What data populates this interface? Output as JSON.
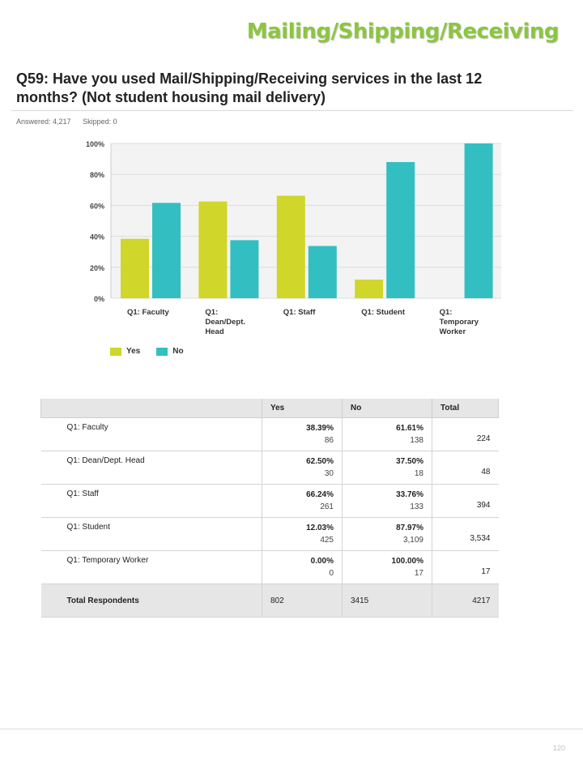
{
  "header": {
    "section_title": "Mailing/Shipping/Receiving",
    "question": "Q59: Have you used Mail/Shipping/Receiving services in the last 12 months? (Not student housing mail delivery)",
    "answered": "Answered: 4,217",
    "skipped": "Skipped: 0"
  },
  "chart_data": {
    "type": "bar",
    "categories": [
      [
        "Q1: Faculty"
      ],
      [
        "Q1:",
        "Dean/Dept.",
        "Head"
      ],
      [
        "Q1: Staff"
      ],
      [
        "Q1: Student"
      ],
      [
        "Q1:",
        "Temporary",
        "Worker"
      ]
    ],
    "series": [
      {
        "name": "Yes",
        "color": "#d0d62a",
        "values": [
          38.39,
          62.5,
          66.24,
          12.03,
          0.0
        ]
      },
      {
        "name": "No",
        "color": "#33bfc1",
        "values": [
          61.61,
          37.5,
          33.76,
          87.97,
          100.0
        ]
      }
    ],
    "ylim": [
      0,
      100
    ],
    "yticks": [
      "0%",
      "20%",
      "40%",
      "60%",
      "80%",
      "100%"
    ],
    "grid": true,
    "legend": "bottom-left"
  },
  "table": {
    "headers": [
      "",
      "Yes",
      "No",
      "Total"
    ],
    "rows": [
      {
        "label": "Q1: Faculty",
        "yes_pct": "38.39%",
        "yes_n": "86",
        "no_pct": "61.61%",
        "no_n": "138",
        "total": "224"
      },
      {
        "label": "Q1: Dean/Dept. Head",
        "yes_pct": "62.50%",
        "yes_n": "30",
        "no_pct": "37.50%",
        "no_n": "18",
        "total": "48"
      },
      {
        "label": "Q1: Staff",
        "yes_pct": "66.24%",
        "yes_n": "261",
        "no_pct": "33.76%",
        "no_n": "133",
        "total": "394"
      },
      {
        "label": "Q1: Student",
        "yes_pct": "12.03%",
        "yes_n": "425",
        "no_pct": "87.97%",
        "no_n": "3,109",
        "total": "3,534"
      },
      {
        "label": "Q1: Temporary Worker",
        "yes_pct": "0.00%",
        "yes_n": "0",
        "no_pct": "100.00%",
        "no_n": "17",
        "total": "17"
      }
    ],
    "total_row": {
      "label": "Total Respondents",
      "yes": "802",
      "no": "3415",
      "total": "4217"
    }
  },
  "footer": {
    "page_number": "120"
  }
}
